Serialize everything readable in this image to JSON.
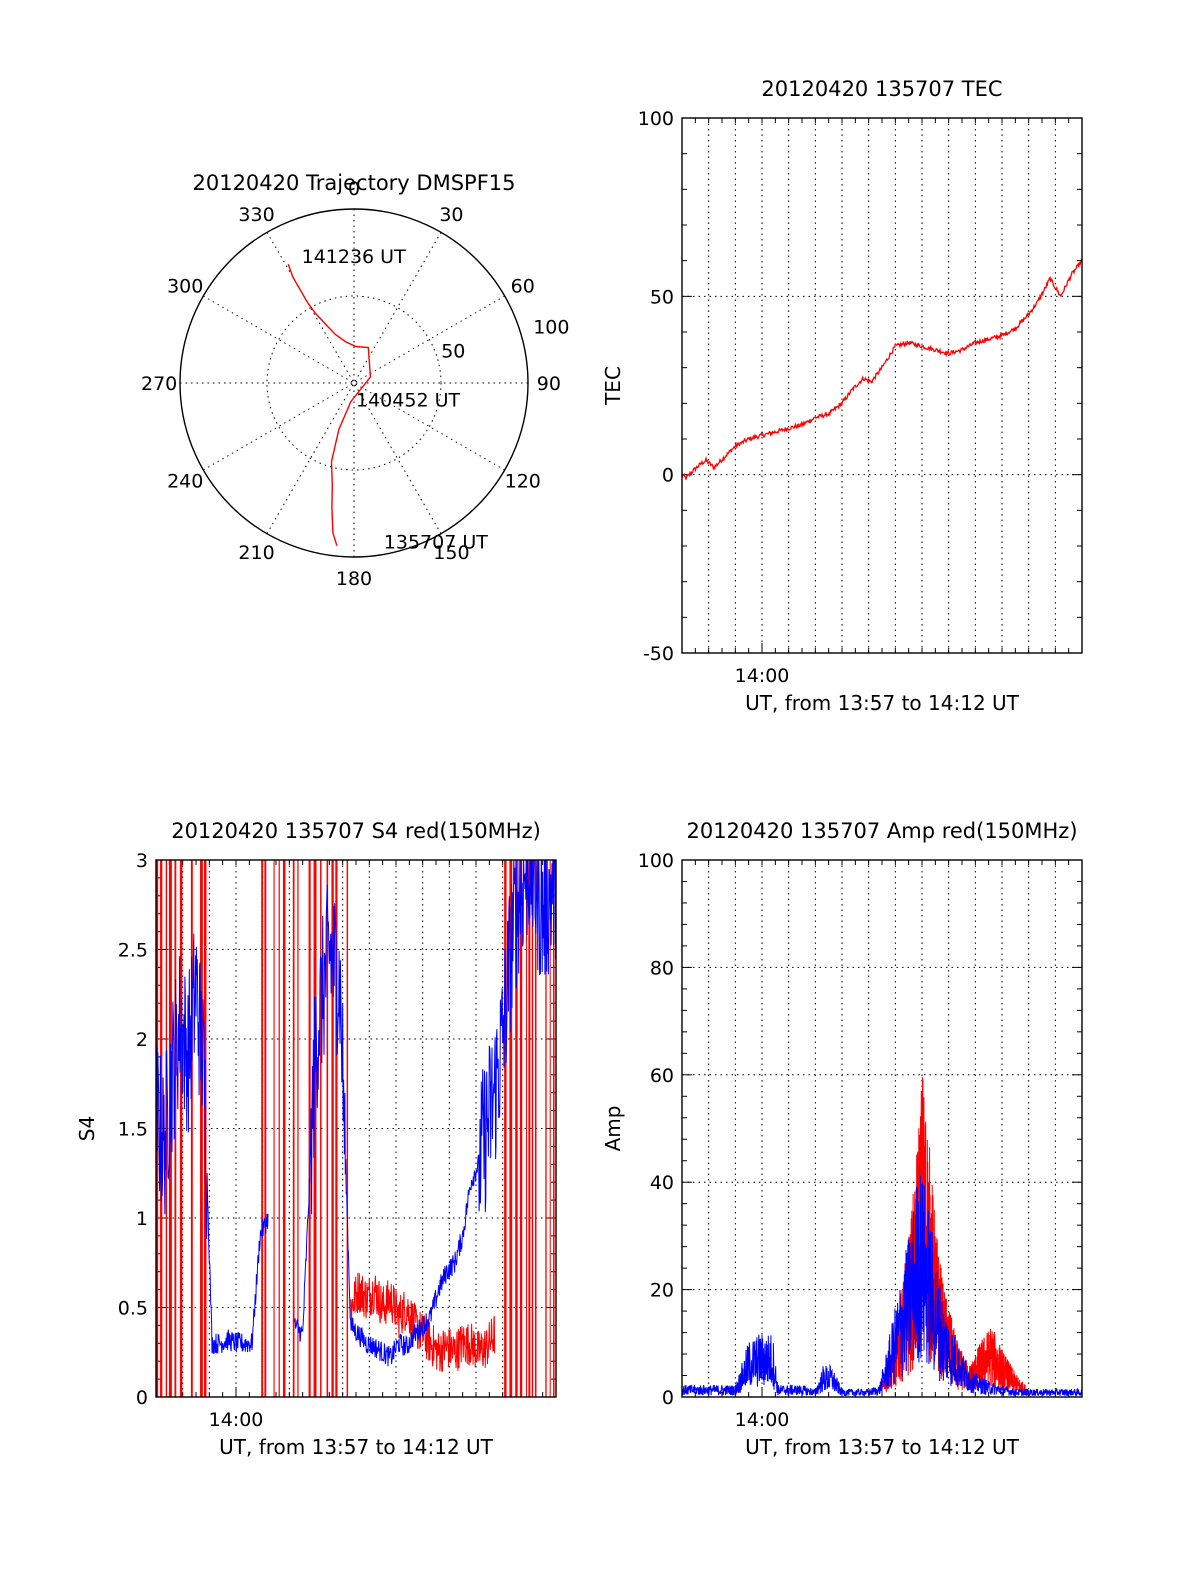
{
  "colors": {
    "red": "#ff0000",
    "blue": "#0000ff",
    "ink": "#000000"
  },
  "chart_data": [
    {
      "id": "trajectory",
      "type": "polar",
      "title": "20120420 Trajectory DMSPF15",
      "angle_labels": [
        "0",
        "30",
        "60",
        "90",
        "120",
        "150",
        "180",
        "210",
        "240",
        "270",
        "300",
        "330"
      ],
      "radius_labels": [
        "50",
        "100"
      ],
      "rlim": [
        0,
        100
      ],
      "series": [
        {
          "color": "red",
          "points": [
            [
              331,
              78
            ],
            [
              330,
              70
            ],
            [
              330,
              62
            ],
            [
              330,
              54
            ],
            [
              331,
              46
            ],
            [
              334,
              38
            ],
            [
              339,
              30
            ],
            [
              349,
              24
            ],
            [
              3,
              21
            ],
            [
              22,
              22
            ],
            [
              70,
              10
            ],
            [
              190,
              11
            ],
            [
              198,
              28
            ],
            [
              196,
              47
            ],
            [
              192,
              60
            ],
            [
              190,
              73
            ],
            [
              188,
              87
            ],
            [
              186,
              94
            ]
          ]
        }
      ],
      "annotations": [
        {
          "text": "141236 UT",
          "az": 337,
          "r": 80
        },
        {
          "text": "140452 UT",
          "az": 180,
          "r": 9
        },
        {
          "text": "135707 UT",
          "az": 170,
          "r": 92
        }
      ]
    },
    {
      "id": "tec",
      "type": "line",
      "title": "20120420 135707 TEC",
      "xlabel": "UT, from 13:57 to 14:12 UT",
      "ylabel": "TEC",
      "xlim": [
        0,
        15
      ],
      "ylim": [
        -50,
        100
      ],
      "x_ticks": [
        {
          "x": 3,
          "label": "14:00"
        }
      ],
      "y_ticks": [
        "100",
        "50",
        "0",
        "-50"
      ],
      "series": [
        {
          "color": "red",
          "x": [
            0,
            0.15,
            0.4,
            0.7,
            0.9,
            1.2,
            1.6,
            2,
            2.5,
            3,
            3.5,
            4,
            4.5,
            5,
            5.5,
            6,
            6.4,
            6.8,
            7.1,
            7.5,
            8,
            8.5,
            9,
            9.5,
            10,
            10.5,
            11,
            11.5,
            12,
            12.5,
            13,
            13.3,
            13.6,
            13.8,
            14.2,
            14.6,
            15
          ],
          "y": [
            0,
            -1,
            1,
            3,
            4,
            2,
            5,
            8,
            10,
            11,
            12,
            13,
            14,
            16,
            17,
            20,
            24,
            27,
            26,
            30,
            36,
            37,
            36,
            35,
            34,
            35,
            37,
            38,
            39,
            41,
            45,
            48,
            52,
            55,
            50,
            56,
            60
          ]
        }
      ]
    },
    {
      "id": "s4",
      "type": "line",
      "title": "20120420 135707 S4 red(150MHz)",
      "xlabel": "UT, from 13:57 to 14:12 UT",
      "ylabel": "S4",
      "xlim": [
        0,
        15
      ],
      "ylim": [
        0,
        3
      ],
      "x_ticks": [
        {
          "x": 3,
          "label": "14:00"
        }
      ],
      "y_ticks": [
        "0",
        "0.5",
        "1",
        "1.5",
        "2",
        "2.5",
        "3"
      ],
      "series": [
        {
          "color": "red",
          "x": [
            7.3,
            7.6,
            7.9,
            8.2,
            8.5,
            8.8,
            9.1,
            9.4,
            9.7,
            10,
            10.3,
            10.6,
            10.9,
            11.2,
            11.5,
            11.8,
            12.1,
            12.4,
            12.7
          ],
          "y": [
            0.5,
            0.6,
            0.55,
            0.6,
            0.5,
            0.55,
            0.45,
            0.5,
            0.4,
            0.35,
            0.3,
            0.25,
            0.28,
            0.25,
            0.3,
            0.3,
            0.25,
            0.28,
            0.35
          ]
        },
        {
          "color": "blue",
          "x": [
            0,
            0.3,
            0.6,
            0.9,
            1.2,
            1.5,
            1.8,
            2.1,
            2.4,
            2.7,
            3.0,
            3.3,
            3.6,
            3.9,
            4.2,
            5.2,
            5.5,
            6.0,
            6.5,
            6.9,
            7.3,
            7.6,
            7.9,
            8.2,
            8.5,
            8.8,
            9.1,
            9.4,
            9.7,
            10,
            10.3,
            10.6,
            10.9,
            11.2,
            11.5,
            11.8,
            12.1,
            12.4,
            12.7,
            13.0,
            13.3,
            13.6,
            14.0,
            14.5,
            15
          ],
          "y": [
            1.6,
            1.4,
            1.8,
            2.1,
            1.9,
            2.3,
            1.8,
            0.3,
            0.3,
            0.32,
            0.3,
            0.3,
            0.3,
            0.9,
            1.0,
            0.4,
            0.35,
            2.0,
            2.5,
            2.3,
            0.4,
            0.35,
            0.3,
            0.28,
            0.25,
            0.22,
            0.3,
            0.28,
            0.35,
            0.4,
            0.45,
            0.6,
            0.7,
            0.75,
            0.9,
            1.2,
            1.3,
            1.5,
            1.7,
            2.0,
            2.5,
            2.8,
            3.0,
            2.7,
            2.9
          ]
        }
      ]
    },
    {
      "id": "amp",
      "type": "line",
      "title": "20120420 135707 Amp red(150MHz)",
      "xlabel": "UT, from 13:57 to 14:12 UT",
      "ylabel": "Amp",
      "xlim": [
        0,
        15
      ],
      "ylim": [
        0,
        100
      ],
      "x_ticks": [
        {
          "x": 3,
          "label": "14:00"
        }
      ],
      "y_ticks": [
        "0",
        "20",
        "40",
        "60",
        "80",
        "100"
      ],
      "series": [
        {
          "color": "red",
          "x": [
            7.5,
            8,
            8.5,
            8.8,
            9.0,
            9.2,
            9.5,
            9.8,
            10.1,
            10.4,
            10.8,
            11.2,
            11.6,
            12,
            12.5,
            13
          ],
          "y": [
            2,
            8,
            20,
            30,
            42,
            35,
            22,
            14,
            10,
            6,
            4,
            7,
            9,
            6,
            3,
            1
          ]
        },
        {
          "color": "blue",
          "x": [
            0,
            1,
            2,
            2.5,
            2.9,
            3.4,
            3.6,
            4,
            4.5,
            5,
            5.3,
            5.6,
            6,
            6.5,
            7,
            7.4,
            7.8,
            8.2,
            8.6,
            8.9,
            9.2,
            9.5,
            9.8,
            10.2,
            10.6,
            11,
            11.5,
            12,
            12.5,
            13,
            14,
            15
          ],
          "y": [
            1.5,
            1.5,
            1.5,
            7,
            8,
            8,
            1.5,
            1.5,
            1.5,
            1,
            4,
            4,
            1,
            1,
            1,
            1.5,
            8,
            15,
            22,
            30,
            25,
            18,
            12,
            8,
            5,
            3,
            2,
            1.5,
            1,
            1,
            1,
            1
          ]
        }
      ]
    }
  ]
}
